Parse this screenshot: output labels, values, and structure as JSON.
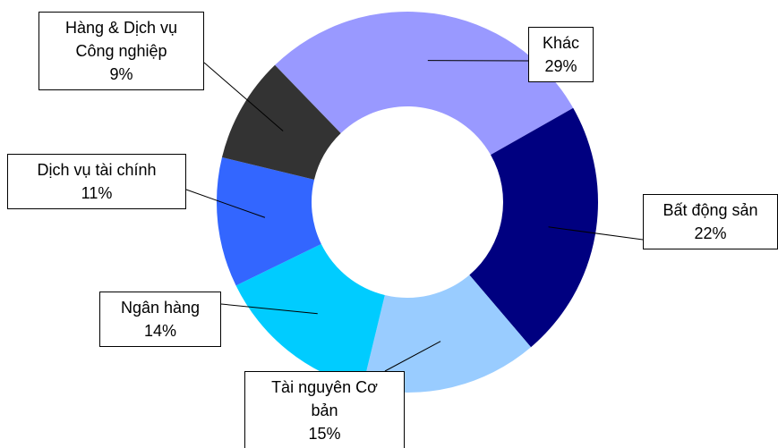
{
  "chart_data": {
    "type": "donut",
    "categories": [
      "Khác",
      "Bất động sản",
      "Tài nguyên Cơ bản",
      "Ngân hàng",
      "Dịch vụ tài chính",
      "Hàng & Dịch vụ Công nghiệp"
    ],
    "values": [
      29,
      22,
      15,
      14,
      11,
      9
    ],
    "value_labels": [
      "29%",
      "22%",
      "15%",
      "14%",
      "11%",
      "9%"
    ],
    "colors": [
      "#9999ff",
      "#000080",
      "#99ccff",
      "#00ccff",
      "#3366ff",
      "#333333"
    ]
  }
}
